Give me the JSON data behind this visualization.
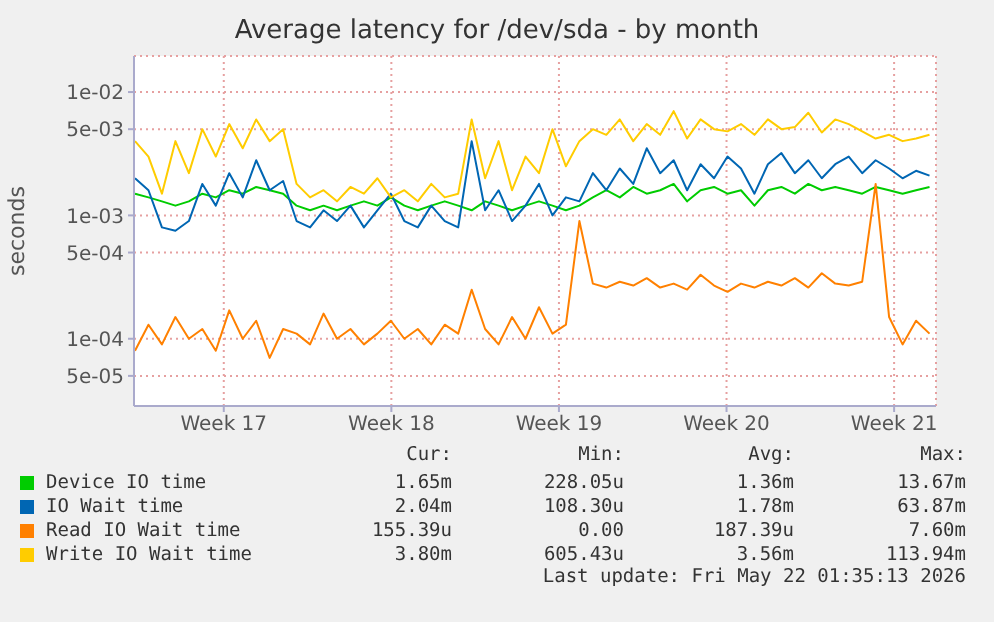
{
  "chart_data": {
    "type": "line",
    "title": "Average latency for /dev/sda - by month",
    "ylabel": "seconds",
    "log": "y",
    "grid": true,
    "legend": "bottom",
    "xlim": [
      "2026-04-19T18:00",
      "2026-05-23T06:00"
    ],
    "xticks": [
      {
        "value": "2026-04-23T12:00",
        "label": "Week 17"
      },
      {
        "value": "2026-04-30T12:00",
        "label": "Week 18"
      },
      {
        "value": "2026-05-07T12:00",
        "label": "Week 19"
      },
      {
        "value": "2026-05-14T12:00",
        "label": "Week 20"
      },
      {
        "value": "2026-05-21T12:00",
        "label": "Week 21"
      }
    ],
    "ylim": [
      2.85e-05,
      0.0196
    ],
    "yticks": [
      {
        "value": 5e-05,
        "label": "5e-05"
      },
      {
        "value": 0.0001,
        "label": "1e-04"
      },
      {
        "value": 0.0005,
        "label": "5e-04"
      },
      {
        "value": 0.001,
        "label": "1e-03"
      },
      {
        "value": 0.005,
        "label": "5e-03"
      },
      {
        "value": 0.01,
        "label": "1e-02"
      }
    ],
    "x": [
      "2026-04-19T19:00",
      "2026-04-20T08:30",
      "2026-04-20T22:00",
      "2026-04-21T11:30",
      "2026-04-22T01:00",
      "2026-04-22T14:30",
      "2026-04-23T04:00",
      "2026-04-23T17:30",
      "2026-04-24T07:00",
      "2026-04-24T20:30",
      "2026-04-25T10:00",
      "2026-04-25T23:30",
      "2026-04-26T13:00",
      "2026-04-27T02:30",
      "2026-04-27T16:00",
      "2026-04-28T05:30",
      "2026-04-28T19:00",
      "2026-04-29T08:30",
      "2026-04-29T22:00",
      "2026-04-30T11:30",
      "2026-05-01T01:00",
      "2026-05-01T14:30",
      "2026-05-02T04:00",
      "2026-05-02T17:30",
      "2026-05-03T07:00",
      "2026-05-03T20:30",
      "2026-05-04T10:00",
      "2026-05-04T23:30",
      "2026-05-05T13:00",
      "2026-05-06T02:30",
      "2026-05-06T16:00",
      "2026-05-07T05:30",
      "2026-05-07T19:00",
      "2026-05-08T08:30",
      "2026-05-08T22:00",
      "2026-05-09T11:30",
      "2026-05-10T01:00",
      "2026-05-10T14:30",
      "2026-05-11T04:00",
      "2026-05-11T17:30",
      "2026-05-12T07:00",
      "2026-05-12T20:30",
      "2026-05-13T10:00",
      "2026-05-13T23:30",
      "2026-05-14T13:00",
      "2026-05-15T02:30",
      "2026-05-15T16:00",
      "2026-05-16T05:30",
      "2026-05-16T19:00",
      "2026-05-17T08:30",
      "2026-05-17T22:00",
      "2026-05-18T11:30",
      "2026-05-19T01:00",
      "2026-05-19T14:30",
      "2026-05-20T04:00",
      "2026-05-20T17:30",
      "2026-05-21T07:00",
      "2026-05-21T20:30",
      "2026-05-22T10:00",
      "2026-05-22T23:30"
    ],
    "series": [
      {
        "name": "Device IO time",
        "color": "#00cc00",
        "values": [
          0.0015,
          0.0014,
          0.0013,
          0.0012,
          0.0013,
          0.0015,
          0.0014,
          0.0016,
          0.0015,
          0.0017,
          0.0016,
          0.0015,
          0.0012,
          0.0011,
          0.0012,
          0.0011,
          0.0012,
          0.0013,
          0.0012,
          0.0014,
          0.0012,
          0.0011,
          0.0012,
          0.0013,
          0.0012,
          0.0011,
          0.0013,
          0.0012,
          0.0011,
          0.0012,
          0.0013,
          0.0012,
          0.0011,
          0.0012,
          0.0014,
          0.0016,
          0.0014,
          0.0017,
          0.0015,
          0.0016,
          0.0018,
          0.0013,
          0.0016,
          0.0017,
          0.0015,
          0.0016,
          0.0012,
          0.0016,
          0.0017,
          0.0015,
          0.0018,
          0.0016,
          0.0017,
          0.0016,
          0.0015,
          0.0017,
          0.0016,
          0.0015,
          0.0016,
          0.0017
        ]
      },
      {
        "name": "IO Wait time",
        "color": "#0066b3",
        "values": [
          0.002,
          0.0016,
          0.0008,
          0.00075,
          0.0009,
          0.0018,
          0.0012,
          0.0022,
          0.0014,
          0.0028,
          0.0016,
          0.0019,
          0.0009,
          0.0008,
          0.0011,
          0.0009,
          0.0012,
          0.0008,
          0.0011,
          0.0015,
          0.0009,
          0.0008,
          0.0012,
          0.0009,
          0.0008,
          0.004,
          0.0011,
          0.0016,
          0.0009,
          0.0012,
          0.0018,
          0.001,
          0.0014,
          0.0013,
          0.0022,
          0.0016,
          0.0024,
          0.0018,
          0.0035,
          0.0022,
          0.0028,
          0.0016,
          0.0026,
          0.002,
          0.003,
          0.0024,
          0.0015,
          0.0026,
          0.0032,
          0.0022,
          0.0028,
          0.002,
          0.0026,
          0.003,
          0.0022,
          0.0028,
          0.0024,
          0.002,
          0.0023,
          0.0021
        ]
      },
      {
        "name": "Read IO Wait time",
        "color": "#ff8000",
        "values": [
          8e-05,
          0.00013,
          9e-05,
          0.00015,
          0.0001,
          0.00012,
          8e-05,
          0.00017,
          0.0001,
          0.00014,
          7e-05,
          0.00012,
          0.00011,
          9e-05,
          0.00016,
          0.0001,
          0.00012,
          9e-05,
          0.00011,
          0.00014,
          0.0001,
          0.00012,
          9e-05,
          0.00013,
          0.00011,
          0.00025,
          0.00012,
          9e-05,
          0.00015,
          0.0001,
          0.00018,
          0.00011,
          0.00013,
          0.0009,
          0.00028,
          0.00026,
          0.00029,
          0.00027,
          0.00031,
          0.00026,
          0.00028,
          0.00025,
          0.00033,
          0.00027,
          0.00024,
          0.00028,
          0.00026,
          0.00029,
          0.00027,
          0.00031,
          0.00026,
          0.00034,
          0.00028,
          0.00027,
          0.00029,
          0.0018,
          0.00015,
          9e-05,
          0.00014,
          0.00011
        ]
      },
      {
        "name": "Write IO Wait time",
        "color": "#ffcc00",
        "values": [
          0.004,
          0.003,
          0.0015,
          0.004,
          0.0022,
          0.005,
          0.003,
          0.0055,
          0.0035,
          0.006,
          0.004,
          0.005,
          0.0018,
          0.0014,
          0.0016,
          0.0013,
          0.0017,
          0.0015,
          0.002,
          0.0014,
          0.0016,
          0.0013,
          0.0018,
          0.0014,
          0.0015,
          0.006,
          0.002,
          0.004,
          0.0016,
          0.003,
          0.0022,
          0.005,
          0.0025,
          0.004,
          0.005,
          0.0045,
          0.006,
          0.004,
          0.0055,
          0.0045,
          0.007,
          0.0042,
          0.006,
          0.005,
          0.0048,
          0.0055,
          0.0045,
          0.006,
          0.005,
          0.0052,
          0.0068,
          0.0047,
          0.006,
          0.0055,
          0.0048,
          0.0042,
          0.0045,
          0.004,
          0.0042,
          0.0045
        ]
      }
    ],
    "annotations": [
      "Cur:",
      "Min:",
      "Avg:",
      "Max:",
      "1.65m",
      "228.05u",
      "1.36m",
      "13.67m",
      "2.04m",
      "108.30u",
      "1.78m",
      "63.87m",
      "155.39u",
      "0.00",
      "187.39u",
      "7.60m",
      "3.80m",
      "605.43u",
      "3.56m",
      "113.94m",
      "Last update: Fri May 22 01:35:13 2026"
    ]
  }
}
